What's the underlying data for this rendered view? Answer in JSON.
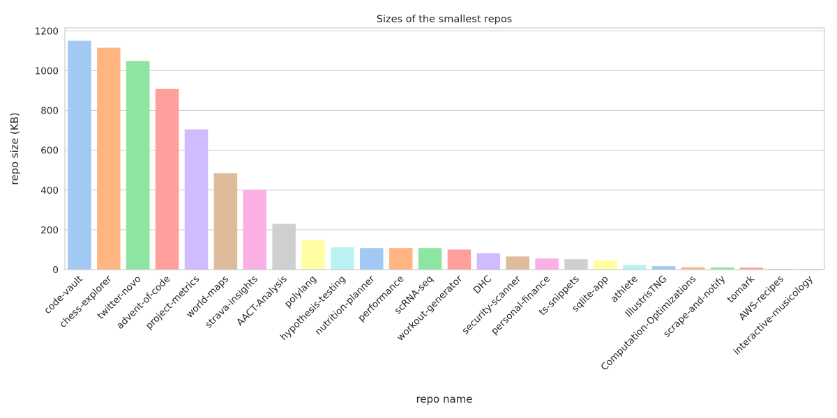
{
  "chart_data": {
    "type": "bar",
    "title": "Sizes of the smallest repos",
    "xlabel": "repo name",
    "ylabel": "repo size (KB)",
    "ylim": [
      0,
      1215
    ],
    "yticks": [
      0,
      200,
      400,
      600,
      800,
      1000,
      1200
    ],
    "grid": "horizontal",
    "categories": [
      "code-vault",
      "chess-explorer",
      "twitter-novo",
      "advent-of-code",
      "project-metrics",
      "world-maps",
      "strava-insights",
      "AACT-Analysis",
      "polylang",
      "hypothesis-testing",
      "nutrition-planner",
      "performance",
      "scRNA-seq",
      "workout-generator",
      "DHC",
      "security-scanner",
      "personal-finance",
      "ts-snippets",
      "sqlite-app",
      "athlete",
      "IllustrisTNG",
      "Computation-Optimizations",
      "scrape-and-notify",
      "tomark",
      "AWS-recipes",
      "interactive-musicology"
    ],
    "values": [
      1150,
      1115,
      1048,
      908,
      705,
      485,
      400,
      230,
      148,
      112,
      108,
      108,
      108,
      101,
      83,
      66,
      56,
      52,
      46,
      24,
      17,
      12,
      11,
      10,
      4,
      3
    ],
    "colors": [
      "#a1c9f4",
      "#ffb482",
      "#8de5a1",
      "#ff9f9b",
      "#d0bbff",
      "#debb9b",
      "#fab0e4",
      "#cfcfcf",
      "#fffea3",
      "#b9f2f0"
    ]
  }
}
